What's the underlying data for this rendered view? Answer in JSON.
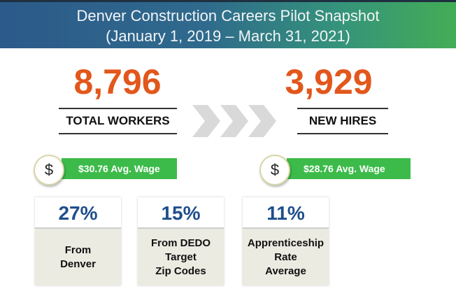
{
  "header": {
    "title": "Denver Construction Careers Pilot Snapshot",
    "subtitle": "(January 1, 2019 – March 31, 2021)"
  },
  "left": {
    "value": "8,796",
    "label": "TOTAL WORKERS",
    "wage": "$30.76 Avg. Wage",
    "wage_icon": "$"
  },
  "right": {
    "value": "3,929",
    "label": "NEW HIRES",
    "wage": "$28.76 Avg. Wage",
    "wage_icon": "$"
  },
  "stats": [
    {
      "value": "27%",
      "label": "From\nDenver"
    },
    {
      "value": "15%",
      "label": "From DEDO\nTarget\nZip Codes"
    },
    {
      "value": "11%",
      "label": "Apprenticeship\nRate\nAverage"
    }
  ],
  "colors": {
    "number": "#e2571c",
    "percent": "#1f4e8c",
    "wage_bar": "#3dbb4a"
  }
}
